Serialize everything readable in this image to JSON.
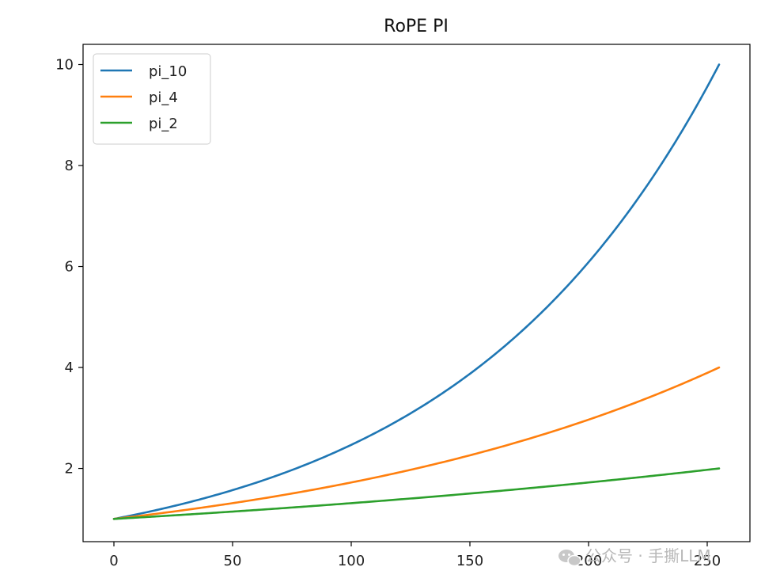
{
  "chart_data": {
    "type": "line",
    "title": "RoPE PI",
    "xlabel": "",
    "ylabel": "",
    "xlim": [
      -13,
      268
    ],
    "ylim": [
      0.55,
      10.4
    ],
    "x_ticks": [
      0,
      50,
      100,
      150,
      200,
      250
    ],
    "y_ticks": [
      2,
      4,
      6,
      8,
      10
    ],
    "grid": false,
    "legend_position": "upper-left",
    "x_range": [
      0,
      255
    ],
    "series": [
      {
        "name": "pi_10",
        "color": "#1f77b4",
        "base": 10,
        "x_max": 255,
        "points": [
          [
            0,
            1.0
          ],
          [
            50,
            1.57
          ],
          [
            100,
            2.47
          ],
          [
            150,
            3.87
          ],
          [
            200,
            6.07
          ],
          [
            255,
            9.91
          ]
        ]
      },
      {
        "name": "pi_4",
        "color": "#ff7f0e",
        "base": 4,
        "x_max": 255,
        "points": [
          [
            0,
            1.0
          ],
          [
            50,
            1.31
          ],
          [
            100,
            1.72
          ],
          [
            150,
            2.26
          ],
          [
            200,
            2.96
          ],
          [
            255,
            3.98
          ]
        ]
      },
      {
        "name": "pi_2",
        "color": "#2ca02c",
        "base": 2,
        "x_max": 255,
        "points": [
          [
            0,
            1.0
          ],
          [
            50,
            1.15
          ],
          [
            100,
            1.31
          ],
          [
            150,
            1.5
          ],
          [
            200,
            1.72
          ],
          [
            255,
            1.99
          ]
        ]
      }
    ]
  },
  "watermark": {
    "text": "公众号 · 手撕LLM"
  }
}
